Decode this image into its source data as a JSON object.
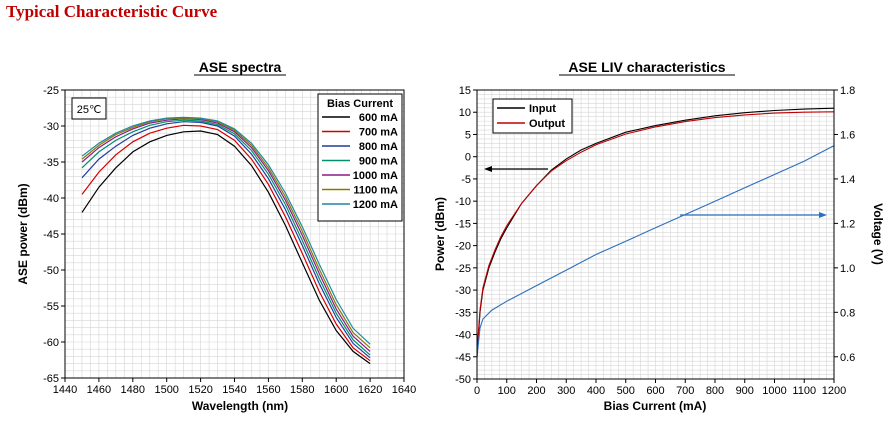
{
  "page": {
    "title": "Typical Characteristic Curve"
  },
  "chart_data": [
    {
      "type": "line",
      "title": "ASE spectra",
      "xlabel": "Wavelength (nm)",
      "ylabel": "ASE power (dBm)",
      "xlim": [
        1440,
        1640
      ],
      "ylim": [
        -65,
        -25
      ],
      "xticks": [
        1440,
        1460,
        1480,
        1500,
        1520,
        1540,
        1560,
        1580,
        1600,
        1620,
        1640
      ],
      "yticks": [
        -25,
        -30,
        -35,
        -40,
        -45,
        -50,
        -55,
        -60,
        -65
      ],
      "grid": true,
      "annotation": "25℃",
      "legend_title": "Bias Current",
      "legend_position": "top-right",
      "x": [
        1450,
        1460,
        1470,
        1480,
        1490,
        1500,
        1510,
        1520,
        1530,
        1540,
        1550,
        1560,
        1570,
        1580,
        1590,
        1600,
        1610,
        1620
      ],
      "series": [
        {
          "name": "600 mA",
          "color": "#000000",
          "values": [
            -42.0,
            -38.5,
            -35.8,
            -33.6,
            -32.2,
            -31.3,
            -30.8,
            -30.7,
            -31.2,
            -32.8,
            -35.5,
            -39.2,
            -43.8,
            -49.0,
            -54.2,
            -58.4,
            -61.3,
            -63.0
          ]
        },
        {
          "name": "700 mA",
          "color": "#d40000",
          "values": [
            -39.5,
            -36.4,
            -34.0,
            -32.2,
            -31.0,
            -30.3,
            -29.9,
            -30.0,
            -30.5,
            -32.0,
            -34.6,
            -38.1,
            -42.6,
            -47.7,
            -53.0,
            -57.5,
            -60.8,
            -62.6
          ]
        },
        {
          "name": "800 mA",
          "color": "#1f3f9f",
          "values": [
            -37.2,
            -34.6,
            -32.8,
            -31.3,
            -30.3,
            -29.7,
            -29.4,
            -29.5,
            -30.0,
            -31.4,
            -33.9,
            -37.3,
            -41.6,
            -46.6,
            -51.9,
            -56.6,
            -60.2,
            -62.2
          ]
        },
        {
          "name": "900 mA",
          "color": "#00906a",
          "values": [
            -35.8,
            -33.6,
            -32.0,
            -30.8,
            -29.9,
            -29.4,
            -29.2,
            -29.3,
            -29.8,
            -31.1,
            -33.4,
            -36.7,
            -40.9,
            -45.9,
            -51.2,
            -56.0,
            -59.7,
            -61.8
          ]
        },
        {
          "name": "1000 mA",
          "color": "#8a1a8a",
          "values": [
            -35.0,
            -33.0,
            -31.5,
            -30.4,
            -29.6,
            -29.2,
            -29.0,
            -29.1,
            -29.6,
            -30.8,
            -33.0,
            -36.2,
            -40.3,
            -45.2,
            -50.5,
            -55.4,
            -59.2,
            -61.3
          ]
        },
        {
          "name": "1100 mA",
          "color": "#8a7a00",
          "values": [
            -34.6,
            -32.7,
            -31.2,
            -30.2,
            -29.4,
            -29.0,
            -28.9,
            -29.0,
            -29.4,
            -30.6,
            -32.7,
            -35.8,
            -39.8,
            -44.6,
            -49.9,
            -54.8,
            -58.7,
            -60.8
          ]
        },
        {
          "name": "1200 mA",
          "color": "#1e8a9e",
          "values": [
            -34.2,
            -32.4,
            -31.0,
            -30.0,
            -29.3,
            -28.9,
            -28.8,
            -28.9,
            -29.3,
            -30.4,
            -32.4,
            -35.4,
            -39.3,
            -44.0,
            -49.2,
            -54.1,
            -58.1,
            -60.3
          ]
        }
      ]
    },
    {
      "type": "line",
      "title": "ASE LIV characteristics",
      "xlabel": "Bias Current (mA)",
      "ylabel": "Power (dBm)",
      "y2label": "Voltage (V)",
      "xlim": [
        0,
        1200
      ],
      "ylim": [
        -50,
        15
      ],
      "y2lim": [
        0.5,
        1.8
      ],
      "xticks": [
        0,
        100,
        200,
        300,
        400,
        500,
        600,
        700,
        800,
        900,
        1000,
        1100,
        1200
      ],
      "yticks": [
        15,
        10,
        5,
        0,
        -5,
        -10,
        -15,
        -20,
        -25,
        -30,
        -35,
        -40,
        -45,
        -50
      ],
      "y2ticks": [
        "1.8",
        "1.6",
        "1.4",
        "1.2",
        "1.0",
        "0.8",
        "0.6"
      ],
      "grid": true,
      "legend_position": "top-left",
      "x": [
        0,
        10,
        20,
        40,
        60,
        80,
        100,
        150,
        200,
        250,
        300,
        350,
        400,
        500,
        600,
        700,
        800,
        900,
        1000,
        1100,
        1200
      ],
      "series": [
        {
          "name": "Input",
          "color": "#000000",
          "axis": "left",
          "values": [
            -45,
            -35,
            -30,
            -25,
            -21.5,
            -18.5,
            -16,
            -10.5,
            -6.5,
            -3,
            -0.5,
            1.5,
            3,
            5.5,
            7,
            8.2,
            9.2,
            9.9,
            10.4,
            10.7,
            10.9
          ]
        },
        {
          "name": "Output",
          "color": "#c00000",
          "axis": "left",
          "values": [
            -44,
            -34.5,
            -29.5,
            -24.5,
            -21,
            -18,
            -15.5,
            -10.5,
            -6.5,
            -3.2,
            -0.9,
            1,
            2.7,
            5.1,
            6.7,
            7.9,
            8.8,
            9.4,
            9.8,
            10.0,
            10.1
          ]
        },
        {
          "name": "Voltage",
          "color": "#2a6fc0",
          "axis": "right",
          "x": [
            0,
            10,
            20,
            50,
            100,
            200,
            300,
            400,
            500,
            600,
            700,
            800,
            900,
            1000,
            1100,
            1200
          ],
          "values": [
            0.6,
            0.73,
            0.77,
            0.81,
            0.85,
            0.92,
            0.99,
            1.06,
            1.12,
            1.18,
            1.24,
            1.3,
            1.36,
            1.42,
            1.48,
            1.55
          ]
        }
      ]
    }
  ]
}
